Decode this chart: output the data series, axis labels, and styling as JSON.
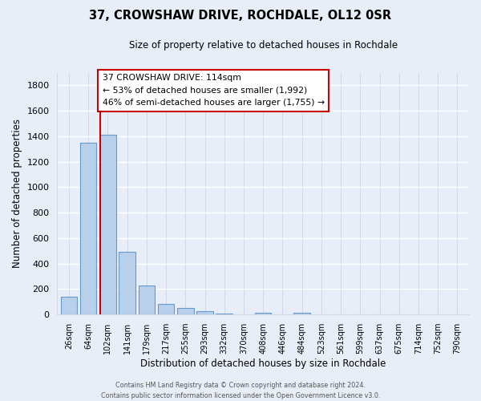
{
  "title": "37, CROWSHAW DRIVE, ROCHDALE, OL12 0SR",
  "subtitle": "Size of property relative to detached houses in Rochdale",
  "xlabel": "Distribution of detached houses by size in Rochdale",
  "ylabel": "Number of detached properties",
  "bar_labels": [
    "26sqm",
    "64sqm",
    "102sqm",
    "141sqm",
    "179sqm",
    "217sqm",
    "255sqm",
    "293sqm",
    "332sqm",
    "370sqm",
    "408sqm",
    "446sqm",
    "484sqm",
    "523sqm",
    "561sqm",
    "599sqm",
    "637sqm",
    "675sqm",
    "714sqm",
    "752sqm",
    "790sqm"
  ],
  "bar_values": [
    140,
    1350,
    1410,
    490,
    230,
    85,
    50,
    25,
    10,
    0,
    15,
    0,
    15,
    0,
    0,
    0,
    0,
    0,
    0,
    0,
    0
  ],
  "bar_color": "#b8d0ea",
  "bar_edge_color": "#6699cc",
  "background_color": "#e8eef8",
  "grid_color": "#d0d8e8",
  "red_line_x": 1.62,
  "ylim": [
    0,
    1900
  ],
  "yticks": [
    0,
    200,
    400,
    600,
    800,
    1000,
    1200,
    1400,
    1600,
    1800
  ],
  "annotation_title": "37 CROWSHAW DRIVE: 114sqm",
  "annotation_line1": "← 53% of detached houses are smaller (1,992)",
  "annotation_line2": "46% of semi-detached houses are larger (1,755) →",
  "footer_line1": "Contains HM Land Registry data © Crown copyright and database right 2024.",
  "footer_line2": "Contains public sector information licensed under the Open Government Licence v3.0."
}
